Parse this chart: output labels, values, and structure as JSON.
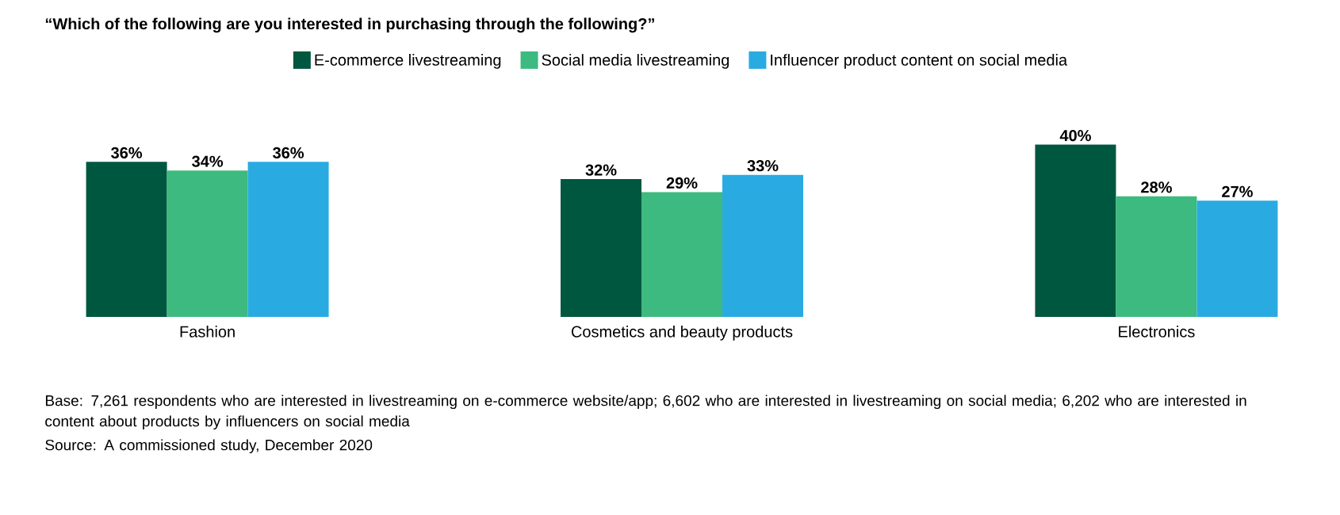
{
  "chart_data": {
    "type": "bar",
    "title": "“Which of the following are you interested in purchasing through the following?”",
    "categories": [
      "Fashion",
      "Cosmetics and beauty products",
      "Electronics"
    ],
    "series": [
      {
        "name": "E-commerce livestreaming",
        "color": "#00573f",
        "values": [
          36,
          32,
          40
        ],
        "value_labels": [
          "36%",
          "32%",
          "40%"
        ]
      },
      {
        "name": "Social media livestreaming",
        "color": "#3dba7f",
        "values": [
          34,
          29,
          28
        ],
        "value_labels": [
          "34%",
          "29%",
          "28%"
        ]
      },
      {
        "name": "Influencer product content on social media",
        "color": "#29abe2",
        "values": [
          36,
          33,
          27
        ],
        "value_labels": [
          "36%",
          "33%",
          "27%"
        ]
      }
    ],
    "legend": "top",
    "annotations": [
      "Base: 7,261 respondents who are interested in livestreaming on e-commerce website/app; 6,602 who are interested in livestreaming on social media; 6,202 who are interested in content about products by influencers on social media",
      "Source: A commissioned study, December 2020"
    ]
  }
}
